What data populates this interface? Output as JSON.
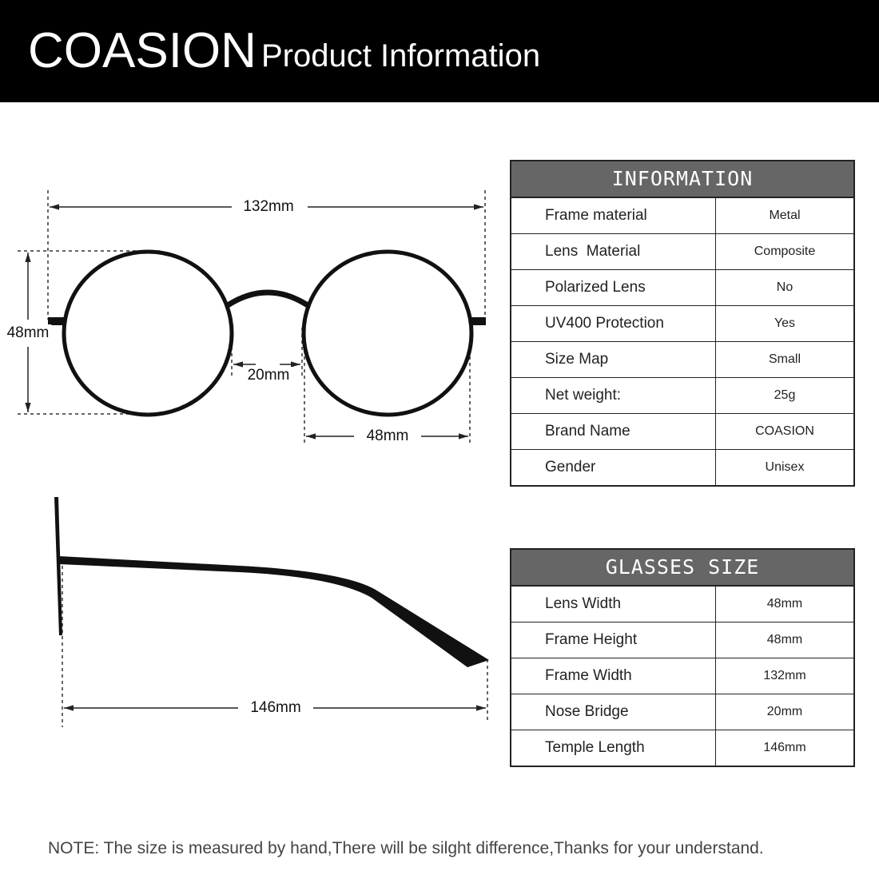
{
  "header": {
    "brand": "COASION",
    "subtitle": "Product Information"
  },
  "front_view": {
    "frame_width": "132mm",
    "frame_height": "48mm",
    "nose_bridge": "20mm",
    "lens_width": "48mm"
  },
  "side_view": {
    "temple_length": "146mm"
  },
  "information": {
    "title": "INFORMATION",
    "rows": [
      [
        "Frame material",
        "Metal"
      ],
      [
        "Lens  Material",
        "Composite"
      ],
      [
        "Polarized Lens",
        "No"
      ],
      [
        "UV400 Protection",
        "Yes"
      ],
      [
        "Size Map",
        "Small"
      ],
      [
        "Net weight:",
        "25g"
      ],
      [
        "Brand Name",
        "COASION"
      ],
      [
        "Gender",
        "Unisex"
      ]
    ]
  },
  "glasses_size": {
    "title": "GLASSES SIZE",
    "rows": [
      [
        "Lens Width",
        "48mm"
      ],
      [
        "Frame Height",
        "48mm"
      ],
      [
        "Frame Width",
        "132mm"
      ],
      [
        "Nose Bridge",
        "20mm"
      ],
      [
        "Temple Length",
        "146mm"
      ]
    ]
  },
  "note": {
    "label": "NOTE:",
    "text": "The size is measured by hand,There will be silght difference,Thanks for your understand."
  }
}
